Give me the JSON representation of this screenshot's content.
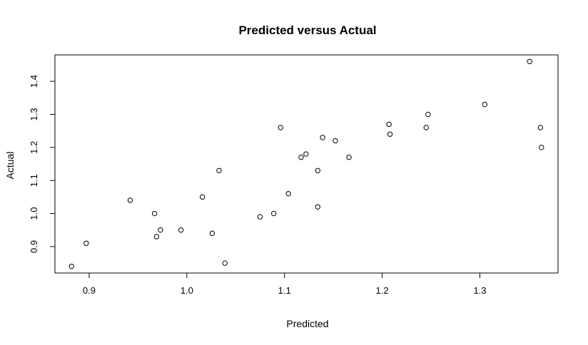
{
  "chart_data": {
    "type": "scatter",
    "title": "Predicted versus Actual",
    "xlabel": "Predicted",
    "ylabel": "Actual",
    "xlim": [
      0.865,
      1.38
    ],
    "ylim": [
      0.82,
      1.48
    ],
    "xticks": [
      "0.9",
      "1.0",
      "1.1",
      "1.2",
      "1.3"
    ],
    "yticks": [
      "0.9",
      "1.0",
      "1.1",
      "1.2",
      "1.3",
      "1.4"
    ],
    "grid": false,
    "marker": "open-circle",
    "color": "#000000",
    "points": [
      {
        "x": 0.882,
        "y": 0.84
      },
      {
        "x": 0.897,
        "y": 0.91
      },
      {
        "x": 0.942,
        "y": 1.04
      },
      {
        "x": 0.967,
        "y": 1.0
      },
      {
        "x": 0.969,
        "y": 0.93
      },
      {
        "x": 0.973,
        "y": 0.95
      },
      {
        "x": 0.994,
        "y": 0.95
      },
      {
        "x": 1.016,
        "y": 1.05
      },
      {
        "x": 1.026,
        "y": 0.94
      },
      {
        "x": 1.033,
        "y": 1.13
      },
      {
        "x": 1.039,
        "y": 0.85
      },
      {
        "x": 1.075,
        "y": 0.99
      },
      {
        "x": 1.089,
        "y": 1.0
      },
      {
        "x": 1.096,
        "y": 1.26
      },
      {
        "x": 1.104,
        "y": 1.06
      },
      {
        "x": 1.117,
        "y": 1.17
      },
      {
        "x": 1.122,
        "y": 1.18
      },
      {
        "x": 1.134,
        "y": 1.13
      },
      {
        "x": 1.134,
        "y": 1.02
      },
      {
        "x": 1.139,
        "y": 1.23
      },
      {
        "x": 1.152,
        "y": 1.22
      },
      {
        "x": 1.166,
        "y": 1.17
      },
      {
        "x": 1.207,
        "y": 1.27
      },
      {
        "x": 1.208,
        "y": 1.24
      },
      {
        "x": 1.245,
        "y": 1.26
      },
      {
        "x": 1.247,
        "y": 1.3
      },
      {
        "x": 1.305,
        "y": 1.33
      },
      {
        "x": 1.351,
        "y": 1.46
      },
      {
        "x": 1.362,
        "y": 1.26
      },
      {
        "x": 1.363,
        "y": 1.2
      }
    ]
  }
}
